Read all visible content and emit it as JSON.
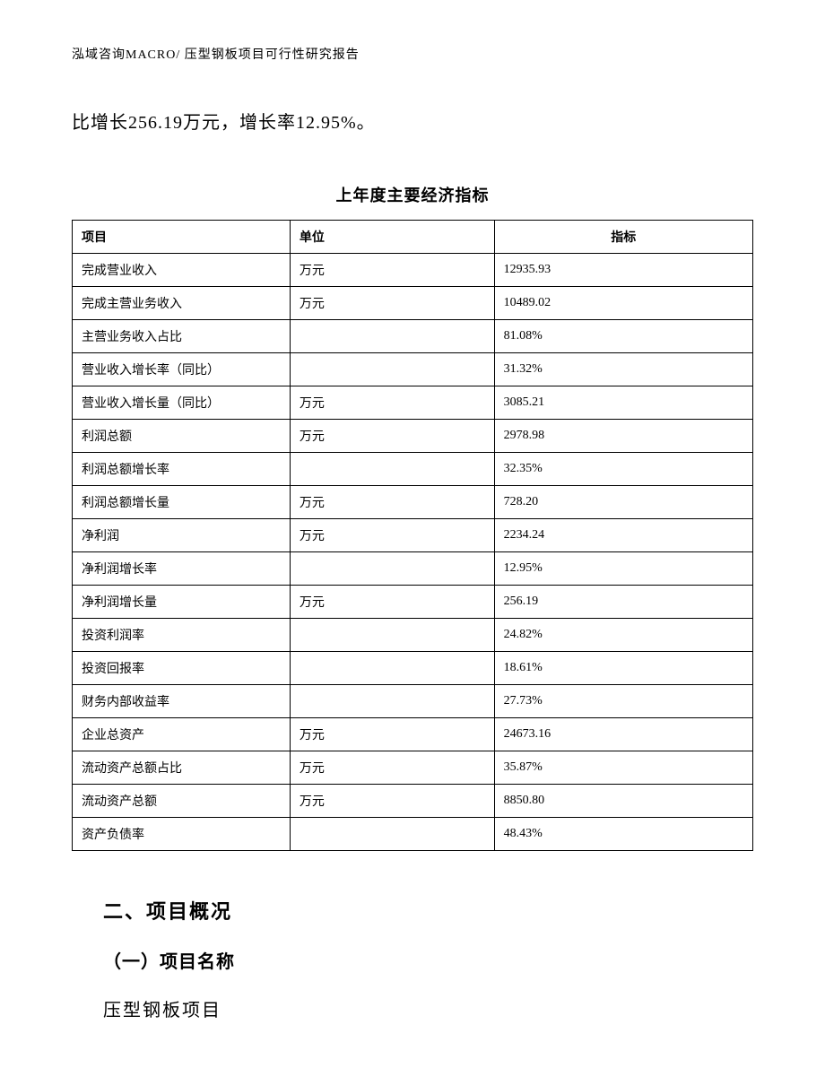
{
  "header": {
    "company": "泓域咨询MACRO/",
    "doc_title": "压型钢板项目可行性研究报告"
  },
  "intro": {
    "text": "比增长256.19万元，增长率12.95%。"
  },
  "table": {
    "title": "上年度主要经济指标",
    "columns": [
      "项目",
      "单位",
      "指标"
    ],
    "column_align": [
      "left",
      "left",
      "center"
    ],
    "rows": [
      [
        "完成营业收入",
        "万元",
        "12935.93"
      ],
      [
        "完成主营业务收入",
        "万元",
        "10489.02"
      ],
      [
        "主营业务收入占比",
        "",
        "81.08%"
      ],
      [
        "营业收入增长率（同比）",
        "",
        "31.32%"
      ],
      [
        "营业收入增长量（同比）",
        "万元",
        "3085.21"
      ],
      [
        "利润总额",
        "万元",
        "2978.98"
      ],
      [
        "利润总额增长率",
        "",
        "32.35%"
      ],
      [
        "利润总额增长量",
        "万元",
        "728.20"
      ],
      [
        "净利润",
        "万元",
        "2234.24"
      ],
      [
        "净利润增长率",
        "",
        "12.95%"
      ],
      [
        "净利润增长量",
        "万元",
        "256.19"
      ],
      [
        "投资利润率",
        "",
        "24.82%"
      ],
      [
        "投资回报率",
        "",
        "18.61%"
      ],
      [
        "财务内部收益率",
        "",
        "27.73%"
      ],
      [
        "企业总资产",
        "万元",
        "24673.16"
      ],
      [
        "流动资产总额占比",
        "万元",
        "35.87%"
      ],
      [
        "流动资产总额",
        "万元",
        "8850.80"
      ],
      [
        "资产负债率",
        "",
        "48.43%"
      ]
    ],
    "border_color": "#000000",
    "text_color": "#000000",
    "font_size": 14
  },
  "sections": {
    "section2_heading": "二、项目概况",
    "subsection1_heading": "（一）项目名称",
    "project_name": "压型钢板项目"
  },
  "style": {
    "background_color": "#ffffff",
    "text_color": "#000000",
    "font_family": "SimSun"
  }
}
